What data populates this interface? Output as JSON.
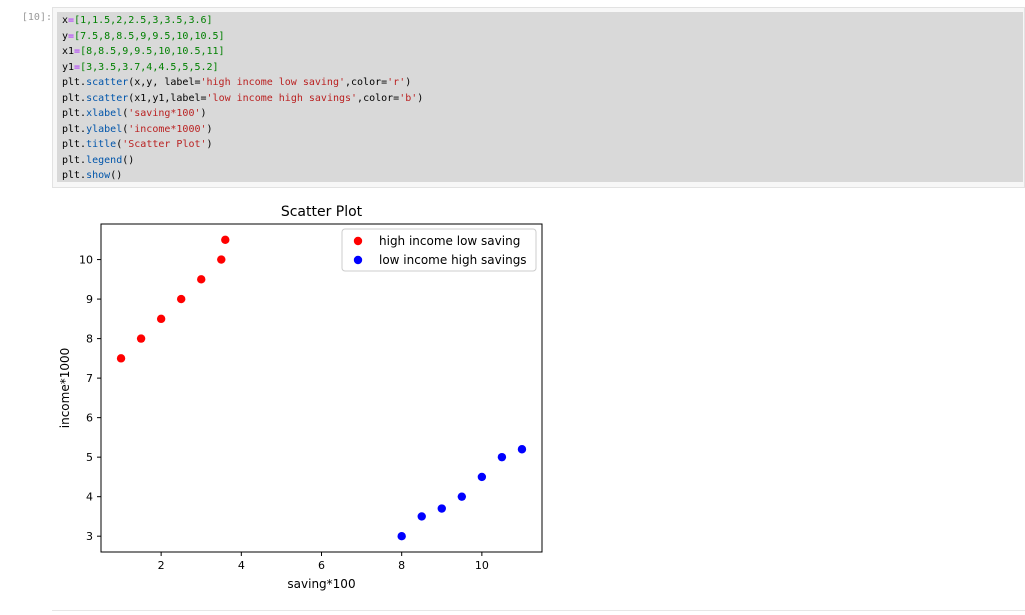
{
  "cell": {
    "prompt": "[10]:",
    "lines": [
      [
        {
          "t": "var",
          "s": "x"
        },
        {
          "t": "op",
          "s": "="
        },
        {
          "t": "num",
          "s": "[1,1.5,2,2.5,3,3.5,3.6]"
        }
      ],
      [
        {
          "t": "var",
          "s": "y"
        },
        {
          "t": "op",
          "s": "="
        },
        {
          "t": "num",
          "s": "[7.5,8,8.5,9,9.5,10,10.5]"
        }
      ],
      [
        {
          "t": "var",
          "s": "x1"
        },
        {
          "t": "op",
          "s": "="
        },
        {
          "t": "num",
          "s": "[8,8.5,9,9.5,10,10.5,11]"
        }
      ],
      [
        {
          "t": "var",
          "s": "y1"
        },
        {
          "t": "op",
          "s": "="
        },
        {
          "t": "num",
          "s": "[3,3.5,3.7,4,4.5,5,5.2]"
        }
      ],
      [
        {
          "t": "var",
          "s": "plt."
        },
        {
          "t": "fn",
          "s": "scatter"
        },
        {
          "t": "var",
          "s": "(x,y, label="
        },
        {
          "t": "str",
          "s": "'high income low saving'"
        },
        {
          "t": "var",
          "s": ",color="
        },
        {
          "t": "str",
          "s": "'r'"
        },
        {
          "t": "var",
          "s": ")"
        }
      ],
      [
        {
          "t": "var",
          "s": "plt."
        },
        {
          "t": "fn",
          "s": "scatter"
        },
        {
          "t": "var",
          "s": "(x1,y1,label="
        },
        {
          "t": "str",
          "s": "'low income high savings'"
        },
        {
          "t": "var",
          "s": ",color="
        },
        {
          "t": "str",
          "s": "'b'"
        },
        {
          "t": "var",
          "s": ")"
        }
      ],
      [
        {
          "t": "var",
          "s": "plt."
        },
        {
          "t": "fn",
          "s": "xlabel"
        },
        {
          "t": "var",
          "s": "("
        },
        {
          "t": "str",
          "s": "'saving*100'"
        },
        {
          "t": "var",
          "s": ")"
        }
      ],
      [
        {
          "t": "var",
          "s": "plt."
        },
        {
          "t": "fn",
          "s": "ylabel"
        },
        {
          "t": "var",
          "s": "("
        },
        {
          "t": "str",
          "s": "'income*1000'"
        },
        {
          "t": "var",
          "s": ")"
        }
      ],
      [
        {
          "t": "var",
          "s": "plt."
        },
        {
          "t": "fn",
          "s": "title"
        },
        {
          "t": "var",
          "s": "("
        },
        {
          "t": "str",
          "s": "'Scatter Plot'"
        },
        {
          "t": "var",
          "s": ")"
        }
      ],
      [
        {
          "t": "var",
          "s": "plt."
        },
        {
          "t": "fn",
          "s": "legend"
        },
        {
          "t": "var",
          "s": "()"
        }
      ],
      [
        {
          "t": "var",
          "s": "plt."
        },
        {
          "t": "fn",
          "s": "show"
        },
        {
          "t": "var",
          "s": "()"
        }
      ]
    ]
  },
  "chart_data": {
    "type": "scatter",
    "title": "Scatter Plot",
    "xlabel": "saving*100",
    "ylabel": "income*1000",
    "xlim": [
      0.5,
      11.5
    ],
    "ylim": [
      2.6,
      10.9
    ],
    "xticks": [
      2,
      4,
      6,
      8,
      10
    ],
    "yticks": [
      3,
      4,
      5,
      6,
      7,
      8,
      9,
      10
    ],
    "grid": false,
    "legend_position": "top-right",
    "series": [
      {
        "name": "high income low saving",
        "color": "#ff0000",
        "x": [
          1,
          1.5,
          2,
          2.5,
          3,
          3.5,
          3.6
        ],
        "y": [
          7.5,
          8,
          8.5,
          9,
          9.5,
          10,
          10.5
        ]
      },
      {
        "name": "low income high savings",
        "color": "#0000ff",
        "x": [
          8,
          8.5,
          9,
          9.5,
          10,
          10.5,
          11
        ],
        "y": [
          3,
          3.5,
          3.7,
          4,
          4.5,
          5,
          5.2
        ]
      }
    ]
  }
}
